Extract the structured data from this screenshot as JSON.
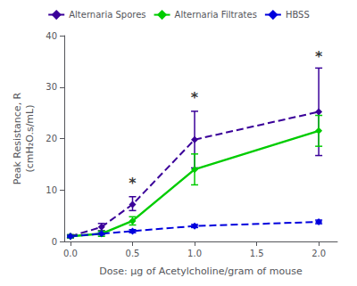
{
  "chart_data": {
    "type": "line",
    "xlabel": "Dose: μg of Acetylcholine/gram of mouse",
    "ylabel": "Peak Resistance, R\n(cmH₂O.s/mL)",
    "x": [
      0.0,
      0.25,
      0.5,
      1.0,
      2.0
    ],
    "series": [
      {
        "name": "Alternaria Spores",
        "color": "#3a0099",
        "line_style": "dashed",
        "marker": "diamond",
        "values": [
          1.0,
          2.8,
          7.2,
          19.8,
          25.2
        ],
        "yerr_low": [
          0.3,
          0.7,
          1.2,
          5.5,
          8.5
        ],
        "yerr_high": [
          0.3,
          0.7,
          1.5,
          5.5,
          8.5
        ]
      },
      {
        "name": "Alternaria Filtrates",
        "color": "#00cc00",
        "line_style": "solid",
        "marker": "diamond",
        "values": [
          1.0,
          1.5,
          4.0,
          14.0,
          21.5
        ],
        "yerr_low": [
          0.3,
          0.5,
          0.8,
          3.0,
          3.0
        ],
        "yerr_high": [
          0.3,
          0.5,
          0.8,
          3.0,
          3.0
        ]
      },
      {
        "name": "HBSS",
        "color": "#0000dd",
        "line_style": "dashed",
        "marker": "diamond",
        "values": [
          1.0,
          1.5,
          2.0,
          3.0,
          3.8
        ],
        "yerr_low": [
          0.2,
          0.2,
          0.3,
          0.3,
          0.35
        ],
        "yerr_high": [
          0.2,
          0.2,
          0.3,
          0.3,
          0.35
        ]
      }
    ],
    "annotations": [
      {
        "text": "*",
        "x": 0.5,
        "y": 10.0
      },
      {
        "text": "*",
        "x": 1.0,
        "y": 26.5
      },
      {
        "text": "*",
        "x": 2.0,
        "y": 34.5
      }
    ],
    "xlim": [
      -0.05,
      2.15
    ],
    "xticks": [
      {
        "value": 0.0,
        "label": "0.0"
      },
      0.5,
      {
        "value": 1.0,
        "label": "1.0"
      },
      1.5,
      {
        "value": 2.0,
        "label": "2.0"
      }
    ],
    "ylim": [
      0,
      40
    ],
    "yticks": [
      0,
      10,
      20,
      30,
      40
    ],
    "grid": false,
    "legend": "upper center"
  }
}
